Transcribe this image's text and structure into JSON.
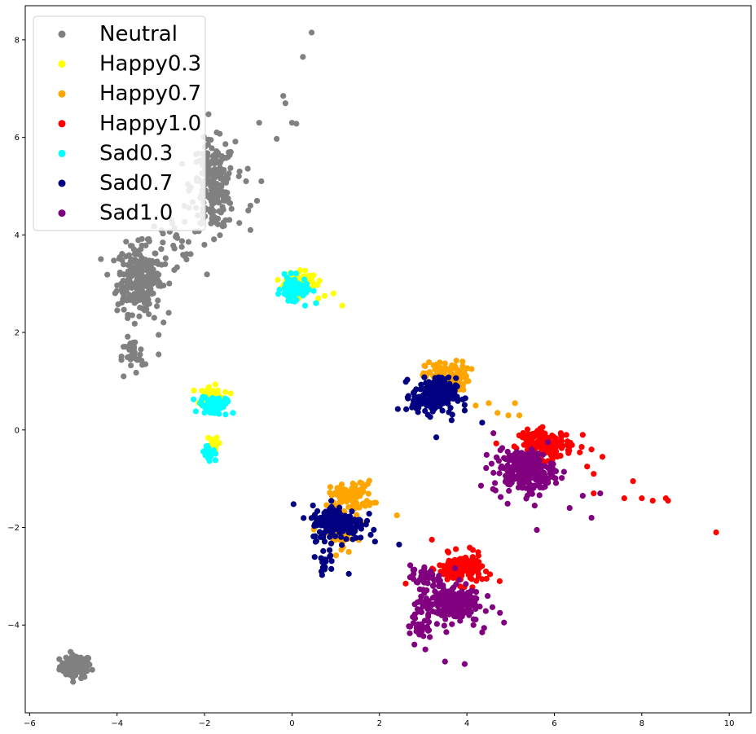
{
  "chart_data": {
    "type": "scatter",
    "title": "",
    "xlabel": "",
    "ylabel": "",
    "xlim": [
      -6.1,
      10.5
    ],
    "ylim": [
      -5.8,
      8.7
    ],
    "xticks": [
      -6,
      -4,
      -2,
      0,
      2,
      4,
      6,
      8,
      10
    ],
    "yticks": [
      -4,
      -2,
      0,
      2,
      4,
      6,
      8
    ],
    "grid": false,
    "legend_position": "top-left",
    "series": [
      {
        "name": "Neutral",
        "color": "#808080",
        "clusters": [
          {
            "cx": -4.95,
            "cy": -4.85,
            "sx": 0.18,
            "sy": 0.12,
            "n": 90
          },
          {
            "cx": -3.5,
            "cy": 3.1,
            "sx": 0.25,
            "sy": 0.35,
            "n": 260
          },
          {
            "cx": -1.8,
            "cy": 5.0,
            "sx": 0.25,
            "sy": 0.45,
            "n": 230
          },
          {
            "cx": -3.65,
            "cy": 1.5,
            "sx": 0.12,
            "sy": 0.18,
            "n": 35
          },
          {
            "cx": -2.6,
            "cy": 3.8,
            "sx": 0.35,
            "sy": 0.35,
            "n": 25
          }
        ],
        "points": [
          [
            0.45,
            8.15
          ],
          [
            0.25,
            7.65
          ],
          [
            -0.2,
            6.85
          ],
          [
            -0.15,
            6.7
          ],
          [
            0.0,
            6.3
          ],
          [
            0.1,
            6.28
          ],
          [
            -0.35,
            5.97
          ],
          [
            -0.75,
            6.3
          ],
          [
            -1.05,
            5.1
          ],
          [
            -0.7,
            5.1
          ],
          [
            -0.95,
            4.6
          ],
          [
            -0.95,
            4.1
          ],
          [
            -1.0,
            4.5
          ],
          [
            -0.8,
            4.7
          ],
          [
            -2.75,
            4.3
          ],
          [
            -2.9,
            3.4
          ],
          [
            -3.0,
            2.95
          ],
          [
            -3.15,
            2.3
          ],
          [
            -3.05,
            1.95
          ],
          [
            -3.05,
            1.55
          ],
          [
            -3.35,
            1.35
          ],
          [
            -3.85,
            1.1
          ]
        ]
      },
      {
        "name": "Happy0.3",
        "color": "#ffff00",
        "clusters": [
          {
            "cx": 0.2,
            "cy": 3.05,
            "sx": 0.18,
            "sy": 0.12,
            "n": 70
          },
          {
            "cx": -1.85,
            "cy": 0.7,
            "sx": 0.15,
            "sy": 0.1,
            "n": 45
          },
          {
            "cx": -1.85,
            "cy": -0.3,
            "sx": 0.08,
            "sy": 0.08,
            "n": 15
          }
        ],
        "points": [
          [
            0.75,
            2.75
          ],
          [
            0.95,
            2.8
          ],
          [
            1.15,
            2.55
          ],
          [
            0.6,
            2.7
          ],
          [
            -1.4,
            0.75
          ],
          [
            -1.9,
            0.88
          ]
        ]
      },
      {
        "name": "Happy0.7",
        "color": "#ffa500",
        "clusters": [
          {
            "cx": 3.55,
            "cy": 1.1,
            "sx": 0.25,
            "sy": 0.15,
            "n": 110
          },
          {
            "cx": 1.35,
            "cy": -1.35,
            "sx": 0.25,
            "sy": 0.15,
            "n": 90
          },
          {
            "cx": 1.1,
            "cy": -2.1,
            "sx": 0.2,
            "sy": 0.15,
            "n": 50
          }
        ],
        "points": [
          [
            4.5,
            0.55
          ],
          [
            4.7,
            0.35
          ],
          [
            4.95,
            0.3
          ],
          [
            5.1,
            0.55
          ],
          [
            5.2,
            0.3
          ],
          [
            4.2,
            0.5
          ],
          [
            2.4,
            -1.75
          ],
          [
            1.8,
            -1.5
          ],
          [
            0.65,
            -1.95
          ],
          [
            1.3,
            -2.5
          ]
        ]
      },
      {
        "name": "Happy1.0",
        "color": "#ff0000",
        "clusters": [
          {
            "cx": 5.8,
            "cy": -0.3,
            "sx": 0.3,
            "sy": 0.15,
            "n": 150
          },
          {
            "cx": 3.85,
            "cy": -2.85,
            "sx": 0.25,
            "sy": 0.15,
            "n": 140
          }
        ],
        "points": [
          [
            6.65,
            -0.1
          ],
          [
            6.85,
            -0.4
          ],
          [
            7.1,
            -0.55
          ],
          [
            6.75,
            -0.75
          ],
          [
            6.9,
            -0.9
          ],
          [
            7.6,
            -1.4
          ],
          [
            7.8,
            -1.05
          ],
          [
            8.0,
            -1.4
          ],
          [
            8.25,
            -1.45
          ],
          [
            8.55,
            -1.4
          ],
          [
            8.6,
            -1.45
          ],
          [
            9.7,
            -2.1
          ],
          [
            3.2,
            -2.25
          ],
          [
            2.6,
            -3.15
          ],
          [
            4.75,
            -3.1
          ],
          [
            4.45,
            -3.05
          ],
          [
            6.9,
            -1.3
          ]
        ]
      },
      {
        "name": "Sad0.3",
        "color": "#00ffff",
        "clusters": [
          {
            "cx": 0.05,
            "cy": 2.9,
            "sx": 0.15,
            "sy": 0.12,
            "n": 80
          },
          {
            "cx": -1.8,
            "cy": 0.5,
            "sx": 0.15,
            "sy": 0.1,
            "n": 60
          },
          {
            "cx": -1.9,
            "cy": -0.45,
            "sx": 0.1,
            "sy": 0.08,
            "n": 25
          }
        ],
        "points": [
          [
            0.3,
            2.55
          ],
          [
            0.55,
            2.6
          ],
          [
            -1.35,
            0.35
          ],
          [
            -2.1,
            0.55
          ],
          [
            -1.75,
            -0.62
          ]
        ]
      },
      {
        "name": "Sad0.7",
        "color": "#000080",
        "clusters": [
          {
            "cx": 3.25,
            "cy": 0.7,
            "sx": 0.25,
            "sy": 0.18,
            "n": 200
          },
          {
            "cx": 1.05,
            "cy": -1.9,
            "sx": 0.3,
            "sy": 0.18,
            "n": 200
          },
          {
            "cx": 0.75,
            "cy": -2.65,
            "sx": 0.1,
            "sy": 0.12,
            "n": 20
          }
        ],
        "points": [
          [
            4.35,
            0.15
          ],
          [
            3.95,
            0.4
          ],
          [
            3.65,
            0.2
          ],
          [
            3.3,
            -0.15
          ],
          [
            2.45,
            -2.35
          ],
          [
            1.3,
            -2.95
          ],
          [
            1.8,
            -2.15
          ],
          [
            0.9,
            -2.85
          ]
        ]
      },
      {
        "name": "Sad1.0",
        "color": "#800080",
        "clusters": [
          {
            "cx": 5.3,
            "cy": -0.85,
            "sx": 0.35,
            "sy": 0.22,
            "n": 230
          },
          {
            "cx": 3.6,
            "cy": -3.55,
            "sx": 0.35,
            "sy": 0.2,
            "n": 220
          },
          {
            "cx": 3.0,
            "cy": -3.0,
            "sx": 0.15,
            "sy": 0.12,
            "n": 30
          },
          {
            "cx": 2.9,
            "cy": -4.0,
            "sx": 0.15,
            "sy": 0.15,
            "n": 30
          }
        ],
        "points": [
          [
            5.55,
            -1.55
          ],
          [
            5.6,
            -2.05
          ],
          [
            6.35,
            -1.6
          ],
          [
            6.65,
            -1.35
          ],
          [
            6.85,
            -1.8
          ],
          [
            7.05,
            -1.3
          ],
          [
            3.5,
            -4.75
          ],
          [
            3.95,
            -4.8
          ],
          [
            4.35,
            -4.15
          ],
          [
            4.85,
            -3.95
          ],
          [
            4.15,
            -4.0
          ],
          [
            2.8,
            -4.4
          ],
          [
            3.05,
            -4.5
          ]
        ]
      }
    ]
  }
}
